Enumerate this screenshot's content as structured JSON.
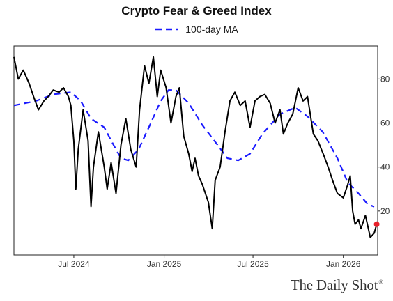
{
  "chart_data": {
    "type": "line",
    "title": "Crypto Fear & Greed Index",
    "xlabel": "",
    "ylabel": "",
    "xlim": [
      "2024-03-01",
      "2026-03-12"
    ],
    "ylim": [
      0,
      95
    ],
    "y_ticks": [
      20,
      40,
      60,
      80
    ],
    "x_ticks": [
      {
        "date": "2024-07-01",
        "label": "Jul 2024"
      },
      {
        "date": "2025-01-01",
        "label": "Jan 2025"
      },
      {
        "date": "2025-07-01",
        "label": "Jul 2025"
      },
      {
        "date": "2026-01-01",
        "label": "Jan 2026"
      }
    ],
    "grid": false,
    "legend_position": "top-center",
    "colors": {
      "index": "#000000",
      "ma": "#1a1aff",
      "last_point": "#e8202a"
    },
    "series": [
      {
        "name": "",
        "style": "solid",
        "x": [
          "2024-03-01",
          "2024-03-10",
          "2024-03-20",
          "2024-04-01",
          "2024-04-10",
          "2024-04-20",
          "2024-05-01",
          "2024-05-10",
          "2024-05-20",
          "2024-06-01",
          "2024-06-10",
          "2024-06-20",
          "2024-06-25",
          "2024-07-01",
          "2024-07-05",
          "2024-07-10",
          "2024-07-20",
          "2024-07-30",
          "2024-08-05",
          "2024-08-10",
          "2024-08-20",
          "2024-09-01",
          "2024-09-07",
          "2024-09-15",
          "2024-09-25",
          "2024-10-05",
          "2024-10-15",
          "2024-10-25",
          "2024-11-05",
          "2024-11-12",
          "2024-11-22",
          "2024-12-01",
          "2024-12-10",
          "2024-12-18",
          "2024-12-25",
          "2025-01-05",
          "2025-01-15",
          "2025-01-25",
          "2025-02-01",
          "2025-02-10",
          "2025-02-20",
          "2025-02-27",
          "2025-03-05",
          "2025-03-12",
          "2025-03-20",
          "2025-04-01",
          "2025-04-09",
          "2025-04-15",
          "2025-04-25",
          "2025-05-05",
          "2025-05-15",
          "2025-05-25",
          "2025-06-05",
          "2025-06-15",
          "2025-06-25",
          "2025-07-05",
          "2025-07-15",
          "2025-07-25",
          "2025-08-05",
          "2025-08-15",
          "2025-08-25",
          "2025-09-01",
          "2025-09-10",
          "2025-09-20",
          "2025-10-01",
          "2025-10-11",
          "2025-10-20",
          "2025-11-01",
          "2025-11-10",
          "2025-11-21",
          "2025-12-01",
          "2025-12-10",
          "2025-12-20",
          "2026-01-01",
          "2026-01-10",
          "2026-01-15",
          "2026-01-20",
          "2026-01-25",
          "2026-02-01",
          "2026-02-06",
          "2026-02-15",
          "2026-02-25",
          "2026-03-05",
          "2026-03-10"
        ],
        "values": [
          90,
          80,
          84,
          78,
          72,
          66,
          70,
          72,
          75,
          74,
          76,
          72,
          68,
          52,
          30,
          48,
          66,
          52,
          22,
          40,
          56,
          40,
          30,
          42,
          28,
          50,
          62,
          48,
          40,
          66,
          86,
          78,
          90,
          72,
          84,
          76,
          60,
          72,
          76,
          54,
          46,
          38,
          44,
          36,
          32,
          24,
          12,
          34,
          40,
          56,
          70,
          74,
          68,
          70,
          58,
          70,
          72,
          73,
          69,
          60,
          66,
          55,
          60,
          64,
          76,
          70,
          72,
          55,
          52,
          46,
          40,
          34,
          28,
          26,
          32,
          36,
          20,
          14,
          16,
          12,
          18,
          8,
          10,
          14
        ]
      },
      {
        "name": "100-day MA",
        "style": "dashed",
        "x": [
          "2024-03-01",
          "2024-04-15",
          "2024-05-20",
          "2024-06-25",
          "2024-07-15",
          "2024-08-05",
          "2024-09-01",
          "2024-09-20",
          "2024-10-05",
          "2024-10-20",
          "2024-11-10",
          "2024-12-05",
          "2024-12-25",
          "2025-01-10",
          "2025-01-25",
          "2025-02-20",
          "2025-03-20",
          "2025-04-20",
          "2025-05-10",
          "2025-06-01",
          "2025-06-25",
          "2025-07-20",
          "2025-08-25",
          "2025-09-25",
          "2025-10-20",
          "2025-11-20",
          "2025-12-20",
          "2026-01-10",
          "2026-02-01",
          "2026-02-20",
          "2026-03-05"
        ],
        "values": [
          68,
          70,
          73,
          74,
          70,
          62,
          58,
          50,
          44,
          43,
          48,
          60,
          70,
          75,
          75,
          69,
          59,
          50,
          44,
          43,
          46,
          55,
          64,
          67,
          63,
          56,
          44,
          33,
          28,
          23,
          22
        ]
      }
    ],
    "last_point": {
      "date": "2026-03-10",
      "value": 14
    }
  },
  "legend": {
    "ma_label": "100-day MA"
  },
  "watermark": {
    "text": "The Daily Shot",
    "mark": "®"
  }
}
